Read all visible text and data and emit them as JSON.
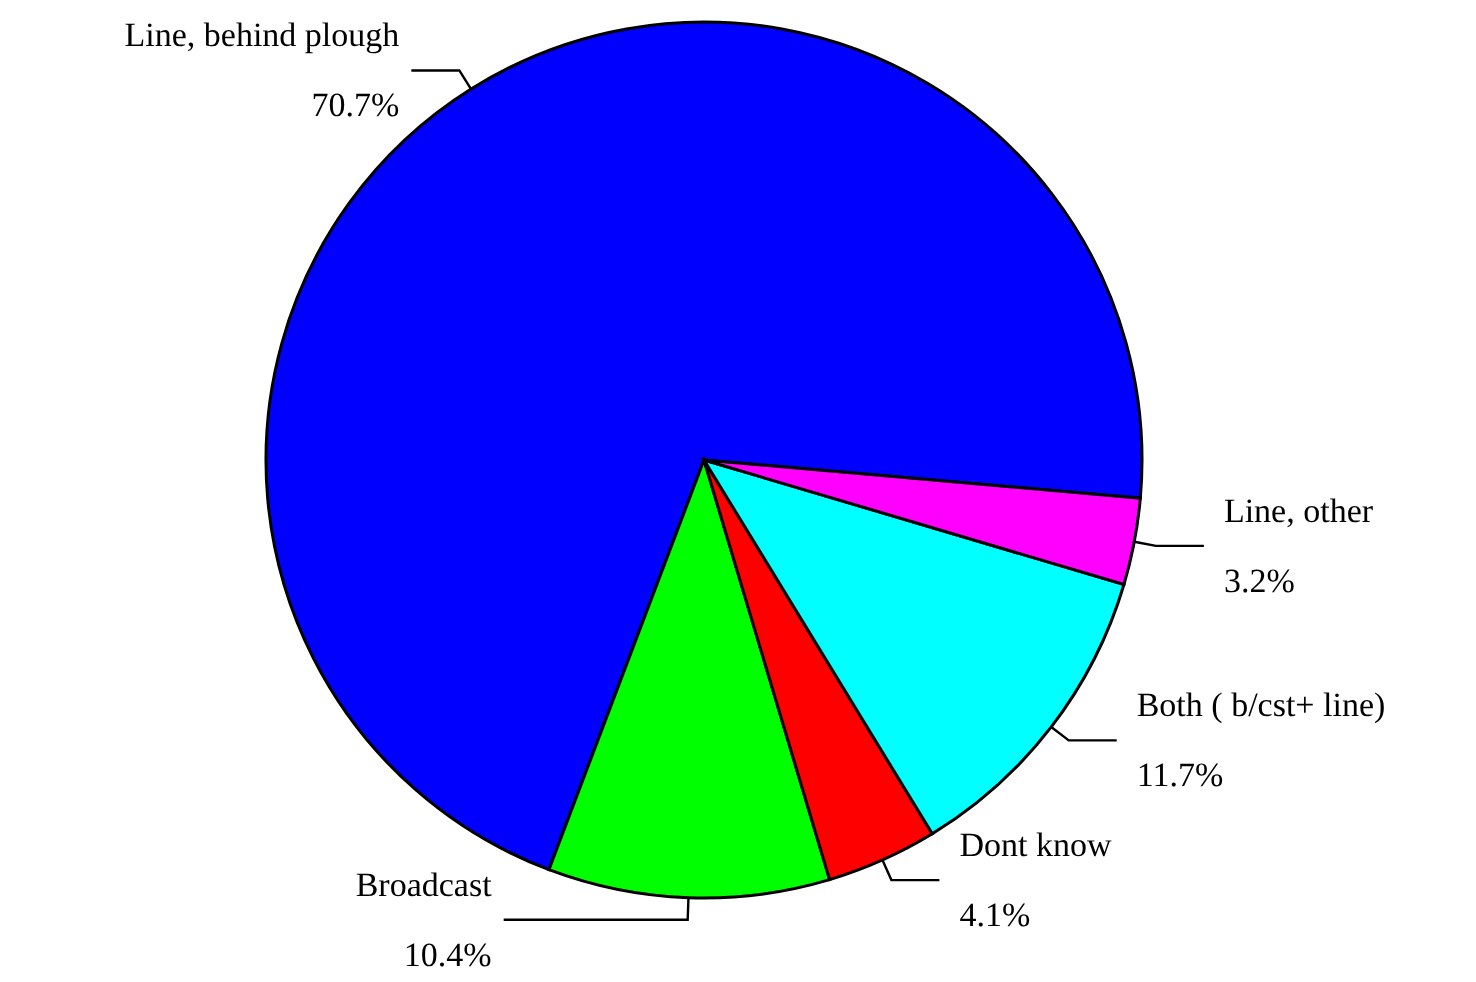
{
  "chart_data": {
    "type": "pie",
    "categories": [
      "Line, behind plough",
      "Broadcast",
      "Dont know",
      "Both ( b/cst+ line)",
      "Line, other"
    ],
    "values": [
      70.7,
      10.4,
      4.1,
      11.7,
      3.2
    ],
    "value_labels": [
      "70.7%",
      "10.4%",
      "4.1%",
      "11.7%",
      "3.2%"
    ],
    "colors": [
      "#0000ff",
      "#00ff00",
      "#ff0000",
      "#00ffff",
      "#ff00ff"
    ]
  }
}
